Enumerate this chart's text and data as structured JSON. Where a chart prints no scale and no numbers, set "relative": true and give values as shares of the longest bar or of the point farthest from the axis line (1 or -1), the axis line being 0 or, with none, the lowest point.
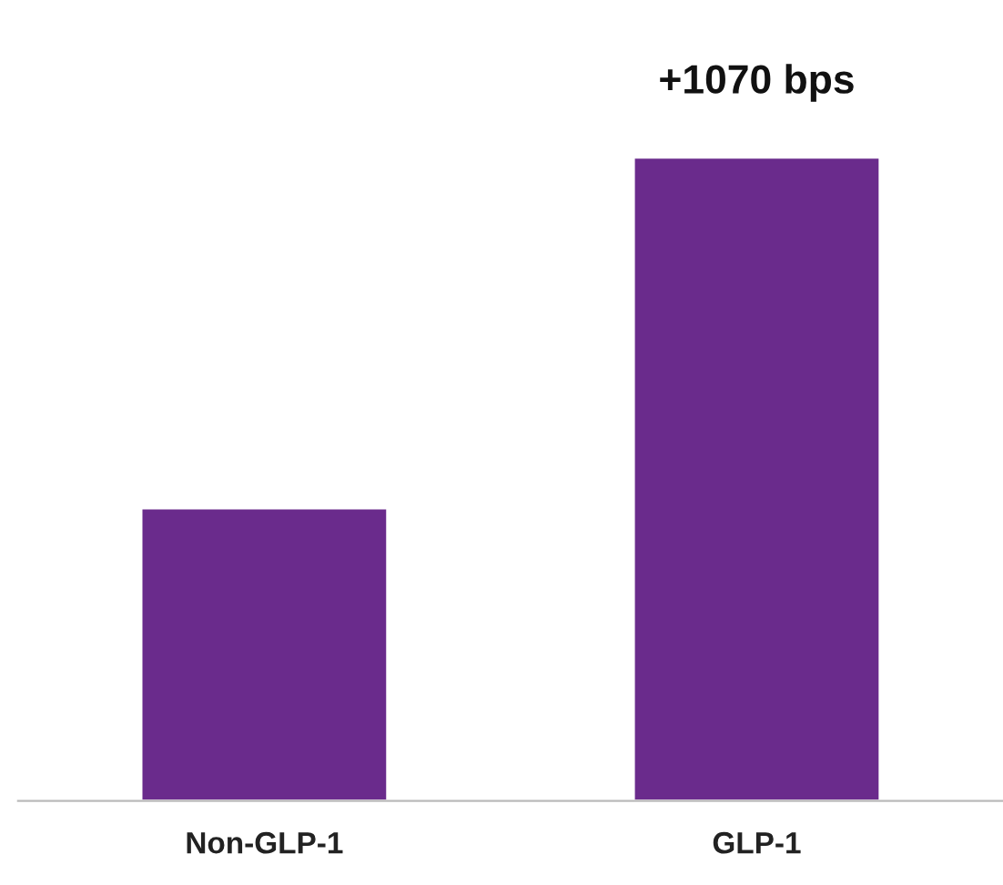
{
  "chart_data": {
    "type": "bar",
    "relative": true,
    "categories": [
      "Non-GLP-1",
      "GLP-1"
    ],
    "values": [
      0.455,
      1
    ],
    "color": "#6a2b8c",
    "annotations": [
      {
        "text": "+1070 bps",
        "x": "GLP-1",
        "y": 1
      }
    ],
    "grid": false
  }
}
